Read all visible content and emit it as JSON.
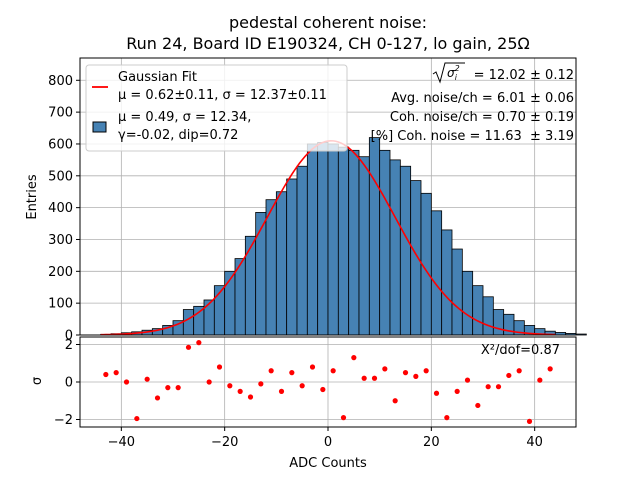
{
  "title_line1": "pedestal coherent noise:",
  "title_line2": "Run 24, Board ID E190324, CH 0-127, lo gain, 25Ω",
  "chart_data": [
    {
      "type": "bar",
      "panel": "histogram",
      "ylabel": "Entries",
      "ylim": [
        0,
        870
      ],
      "yticks": [
        "0",
        "100",
        "200",
        "300",
        "400",
        "500",
        "600",
        "700",
        "800"
      ],
      "xlim": [
        -48,
        48
      ],
      "grid": true,
      "bin_width": 2,
      "bin_start": -44,
      "bar_color": "#4682b4",
      "values": [
        2,
        4,
        7,
        10,
        15,
        20,
        30,
        45,
        80,
        90,
        110,
        155,
        200,
        240,
        310,
        385,
        425,
        450,
        490,
        530,
        600,
        605,
        600,
        590,
        580,
        560,
        620,
        580,
        550,
        530,
        485,
        445,
        390,
        330,
        270,
        200,
        155,
        120,
        80,
        65,
        45,
        30,
        20,
        12,
        8,
        5,
        3
      ],
      "fit": {
        "name": "Gaussian Fit",
        "color": "#ff0000",
        "mu": 0.62,
        "sigma": 12.37,
        "amplitude": 610
      },
      "legend_placement": "top-left",
      "legend": {
        "fit_line1": "Gaussian Fit",
        "fit_line2": "μ = 0.62±0.11, σ = 12.37±0.11",
        "hist_line1": "μ = 0.49, σ = 12.34,",
        "hist_line2": "γ=-0.02, dip=0.72"
      },
      "annotations": {
        "sqrt_sigma_value": " = 12.02 ± 0.12",
        "avg_noise": "Avg. noise/ch = 6.01 ± 0.06",
        "coh_noise": "Coh. noise/ch = 0.70 ± 0.19",
        "coh_percent": "[%] Coh. noise = 11.63  ± 3.19"
      }
    },
    {
      "type": "scatter",
      "panel": "residuals",
      "ylabel": "σ",
      "xlabel": "ADC Counts",
      "ylim": [
        -2.4,
        2.4
      ],
      "yticks": [
        "−2",
        "0",
        "2"
      ],
      "xlim": [
        -48,
        48
      ],
      "xticks": [
        "−40",
        "−20",
        "0",
        "20",
        "40"
      ],
      "grid": true,
      "point_color": "#ff0000",
      "annotation": "X²/dof=0.87",
      "x": [
        -43,
        -41,
        -39,
        -37,
        -35,
        -33,
        -31,
        -29,
        -27,
        -25,
        -23,
        -21,
        -19,
        -17,
        -15,
        -13,
        -11,
        -9,
        -7,
        -5,
        -3,
        -1,
        1,
        3,
        5,
        7,
        9,
        11,
        13,
        15,
        17,
        19,
        21,
        23,
        25,
        27,
        29,
        31,
        33,
        35,
        37,
        39,
        41,
        43
      ],
      "y": [
        0.4,
        0.5,
        0.0,
        -1.95,
        0.15,
        -0.85,
        -0.3,
        -0.3,
        1.85,
        2.1,
        0.0,
        0.8,
        -0.2,
        -0.5,
        -0.8,
        -0.1,
        0.6,
        -0.5,
        0.5,
        -0.2,
        0.8,
        -0.4,
        0.6,
        -1.9,
        1.3,
        0.2,
        0.2,
        0.7,
        -1.0,
        0.5,
        0.3,
        0.6,
        -0.6,
        -1.9,
        -0.5,
        0.1,
        -1.25,
        -0.25,
        -0.25,
        0.35,
        0.6,
        -2.1,
        0.1,
        0.7
      ]
    }
  ]
}
